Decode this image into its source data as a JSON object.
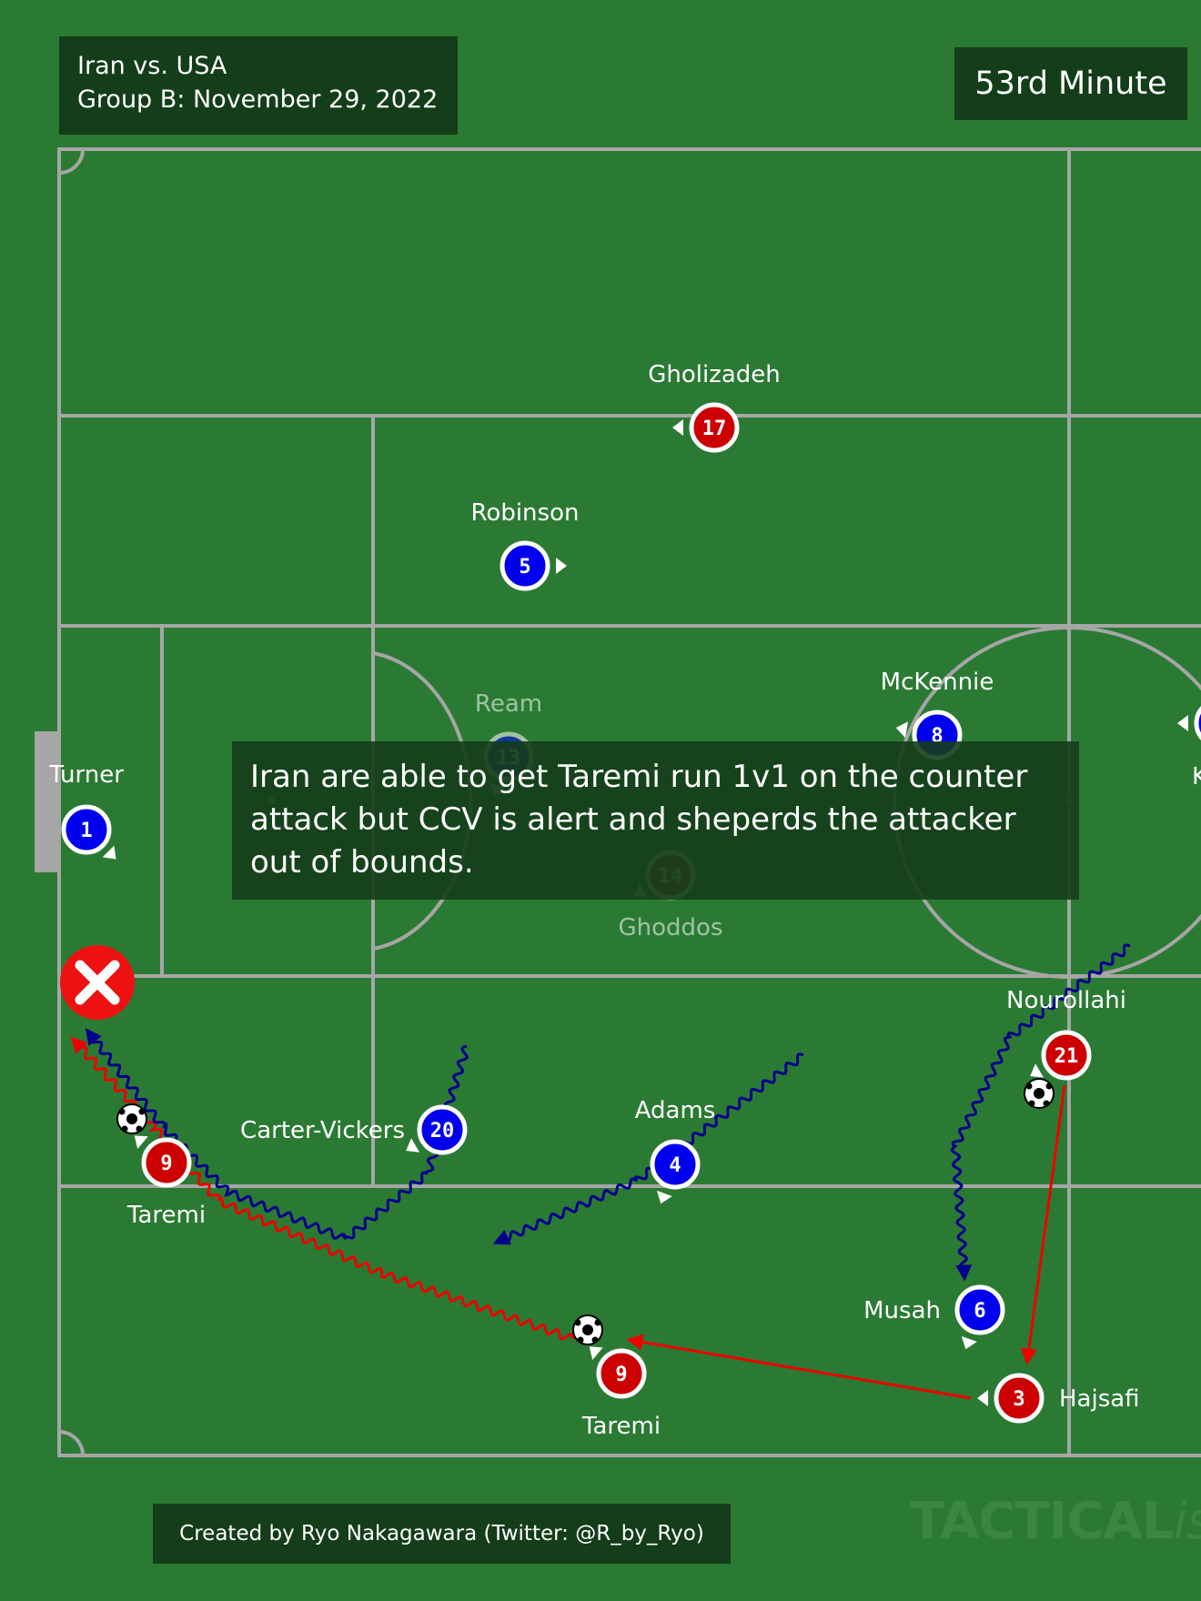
{
  "header": {
    "match": "Iran vs. USA",
    "subtitle": "Group B: November 29, 2022",
    "minute": "53rd Minute"
  },
  "annotation": "Iran are able to get Taremi run 1v1 on the counter attack but CCV is alert and sheperds the attacker out of bounds.",
  "footer": {
    "credit": "Created by Ryo Nakagawara (Twitter: @R_by_Ryo)",
    "watermark_main": "TACTICAL",
    "watermark_italic": "ista"
  },
  "colors": {
    "pitch": "#2b7a33",
    "lines": "#a6a6a6",
    "usa": "#0000ee",
    "iran": "#cc0000",
    "usa_run": "#00008b",
    "iran_run": "#ee0000",
    "box": "#143d1a",
    "out_of_bounds_marker": "#ee1111"
  },
  "players": [
    {
      "name": "Turner",
      "number": "1",
      "team": "usa"
    },
    {
      "name": "Robinson",
      "number": "5",
      "team": "usa"
    },
    {
      "name": "Ream",
      "number": "13",
      "team": "usa"
    },
    {
      "name": "McKennie",
      "number": "8",
      "team": "usa"
    },
    {
      "name": "Carter-Vickers",
      "number": "20",
      "team": "usa"
    },
    {
      "name": "Adams",
      "number": "4",
      "team": "usa"
    },
    {
      "name": "Musah",
      "number": "6",
      "team": "usa"
    },
    {
      "name": "Gholizadeh",
      "number": "17",
      "team": "iran"
    },
    {
      "name": "Ghoddos",
      "number": "14",
      "team": "iran"
    },
    {
      "name": "Nourollahi",
      "number": "21",
      "team": "iran"
    },
    {
      "name": "Hajsafi",
      "number": "3",
      "team": "iran"
    },
    {
      "name": "Taremi",
      "number": "9",
      "team": "iran"
    },
    {
      "name": "Taremi",
      "number": "9",
      "team": "iran"
    },
    {
      "name": "K",
      "number": "",
      "team": "usa"
    }
  ],
  "icons": {
    "ball": "soccer-ball-icon",
    "out": "x-circle-icon"
  }
}
